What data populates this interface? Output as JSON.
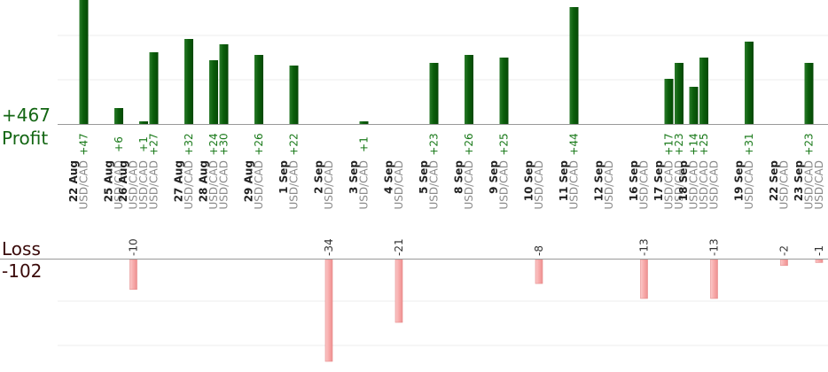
{
  "summary": {
    "profit_total": "+467",
    "profit_label": "Profit",
    "loss_label": "Loss",
    "loss_total": "-102"
  },
  "colors": {
    "profit_bar": "#0b5e0b",
    "loss_bar": "#f7aaaa",
    "profit_text": "#1a7a1a",
    "date_text": "#222222",
    "pair_text": "#8a8a8a",
    "grid": "#ececec",
    "axis": "#999999"
  },
  "chart_data": {
    "type": "bar",
    "title": "",
    "xlabel": "",
    "ylabel": "",
    "profit_ylim": [
      0,
      50
    ],
    "loss_ylim": [
      -40,
      0
    ],
    "grid": true,
    "categories": [
      {
        "date": "22 Aug",
        "pairs": [
          "USD/CAD"
        ]
      },
      {
        "date": "25 Aug",
        "pairs": [
          "USD/CAD"
        ]
      },
      {
        "date": "26 Aug",
        "pairs": [
          "USD/CAD",
          "USD/CAD",
          "USD/CAD"
        ]
      },
      {
        "date": "27 Aug",
        "pairs": [
          "USD/CAD"
        ]
      },
      {
        "date": "28 Aug",
        "pairs": [
          "USD/CAD",
          "USD/CAD"
        ]
      },
      {
        "date": "29 Aug",
        "pairs": [
          "USD/CAD"
        ]
      },
      {
        "date": "1 Sep",
        "pairs": [
          "USD/CAD"
        ]
      },
      {
        "date": "2 Sep",
        "pairs": [
          "USD/CAD"
        ]
      },
      {
        "date": "3 Sep",
        "pairs": [
          "USD/CAD"
        ]
      },
      {
        "date": "4 Sep",
        "pairs": [
          "USD/CAD"
        ]
      },
      {
        "date": "5 Sep",
        "pairs": [
          "USD/CAD"
        ]
      },
      {
        "date": "8 Sep",
        "pairs": [
          "USD/CAD"
        ]
      },
      {
        "date": "9 Sep",
        "pairs": [
          "USD/CAD"
        ]
      },
      {
        "date": "10 Sep",
        "pairs": [
          "USD/CAD"
        ]
      },
      {
        "date": "11 Sep",
        "pairs": [
          "USD/CAD"
        ]
      },
      {
        "date": "12 Sep",
        "pairs": [
          "USD/CAD"
        ]
      },
      {
        "date": "16 Sep",
        "pairs": [
          "USD/CAD"
        ]
      },
      {
        "date": "17 Sep",
        "pairs": [
          "USD/CAD",
          "USD/CAD"
        ]
      },
      {
        "date": "18 Sep",
        "pairs": [
          "USD/CAD",
          "USD/CAD",
          "USD/CAD"
        ]
      },
      {
        "date": "19 Sep",
        "pairs": [
          "USD/CAD"
        ]
      },
      {
        "date": "22 Sep",
        "pairs": [
          "USD/CAD"
        ]
      },
      {
        "date": "23 Sep",
        "pairs": [
          "USD/CAD",
          "USD/CAD"
        ]
      }
    ],
    "trades": [
      {
        "day": 0,
        "slot": 0,
        "value": 47,
        "label": "+47"
      },
      {
        "day": 1,
        "slot": 0,
        "value": 6,
        "label": "+6"
      },
      {
        "day": 2,
        "slot": 0,
        "value": -10,
        "label": "-10"
      },
      {
        "day": 2,
        "slot": 1,
        "value": 1,
        "label": "+1"
      },
      {
        "day": 2,
        "slot": 2,
        "value": 27,
        "label": "+27"
      },
      {
        "day": 3,
        "slot": 0,
        "value": 32,
        "label": "+32"
      },
      {
        "day": 4,
        "slot": 0,
        "value": 24,
        "label": "+24"
      },
      {
        "day": 4,
        "slot": 1,
        "value": 30,
        "label": "+30"
      },
      {
        "day": 5,
        "slot": 0,
        "value": 26,
        "label": "+26"
      },
      {
        "day": 6,
        "slot": 0,
        "value": 22,
        "label": "+22"
      },
      {
        "day": 7,
        "slot": 0,
        "value": -34,
        "label": "-34"
      },
      {
        "day": 8,
        "slot": 0,
        "value": 1,
        "label": "+1"
      },
      {
        "day": 9,
        "slot": 0,
        "value": -21,
        "label": "-21"
      },
      {
        "day": 10,
        "slot": 0,
        "value": 23,
        "label": "+23"
      },
      {
        "day": 11,
        "slot": 0,
        "value": 26,
        "label": "+26"
      },
      {
        "day": 12,
        "slot": 0,
        "value": 25,
        "label": "+25"
      },
      {
        "day": 13,
        "slot": 0,
        "value": -8,
        "label": "-8"
      },
      {
        "day": 14,
        "slot": 0,
        "value": 44,
        "label": "+44"
      },
      {
        "day": 16,
        "slot": 0,
        "value": -13,
        "label": "-13"
      },
      {
        "day": 17,
        "slot": 0,
        "value": 17,
        "label": "+17"
      },
      {
        "day": 17,
        "slot": 1,
        "value": 23,
        "label": "+23"
      },
      {
        "day": 18,
        "slot": 0,
        "value": 14,
        "label": "+14"
      },
      {
        "day": 18,
        "slot": 1,
        "value": 25,
        "label": "+25"
      },
      {
        "day": 18,
        "slot": 2,
        "value": -13,
        "label": "-13"
      },
      {
        "day": 19,
        "slot": 0,
        "value": 31,
        "label": "+31"
      },
      {
        "day": 20,
        "slot": 0,
        "value": -2,
        "label": "-2"
      },
      {
        "day": 21,
        "slot": 0,
        "value": 23,
        "label": "+23"
      },
      {
        "day": 21,
        "slot": 1,
        "value": -1,
        "label": "-1"
      }
    ]
  }
}
